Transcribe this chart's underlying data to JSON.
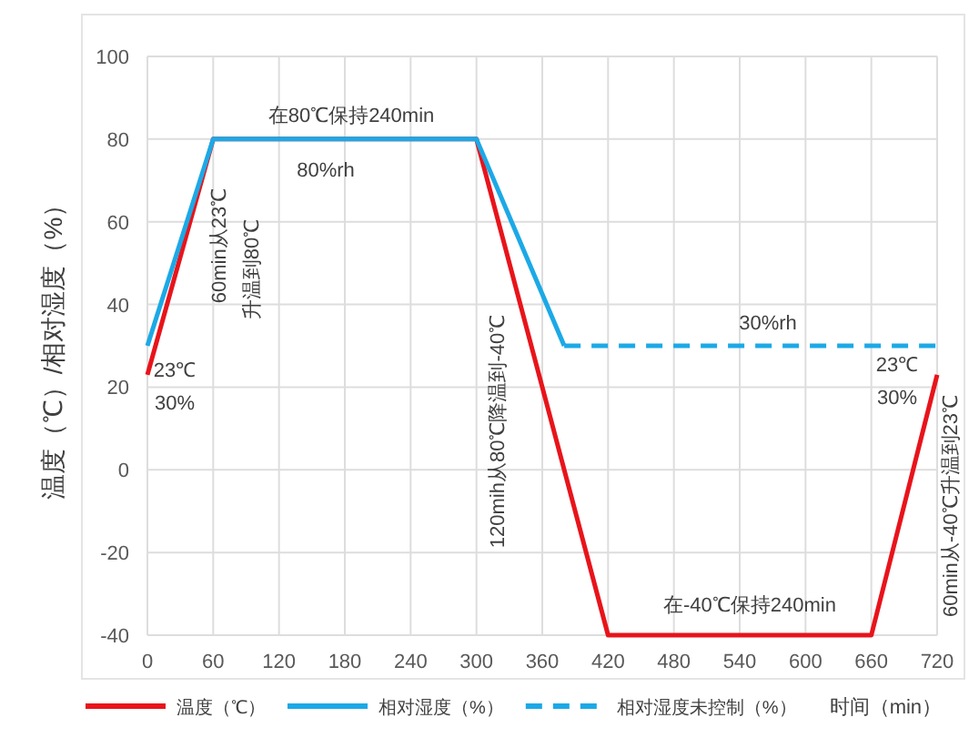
{
  "chart_data": {
    "type": "line",
    "xlabel": "时间（min）",
    "ylabel": "温度（℃）/相对湿度（%）",
    "xlim": [
      0,
      720
    ],
    "xticks": [
      0,
      60,
      120,
      180,
      240,
      300,
      360,
      420,
      480,
      540,
      600,
      660,
      720
    ],
    "ylim": [
      -40,
      100
    ],
    "yticks": [
      -40,
      -20,
      0,
      20,
      40,
      60,
      80,
      100
    ],
    "grid": true,
    "legend": "bottom",
    "series": [
      {
        "name": "温度（℃）",
        "color": "#e8141b",
        "line_style": "solid",
        "x": [
          0,
          60,
          300,
          420,
          660,
          720
        ],
        "values": [
          23,
          80,
          80,
          -40,
          -40,
          23
        ]
      },
      {
        "name": "相对湿度（%）",
        "color": "#1ca9e6",
        "line_style": "solid",
        "x": [
          0,
          60,
          300,
          380
        ],
        "values": [
          30,
          80,
          80,
          30
        ]
      },
      {
        "name": "相对湿度未控制（%）",
        "color": "#1ca9e6",
        "line_style": "dashed",
        "x": [
          380,
          720
        ],
        "values": [
          30,
          30
        ]
      }
    ],
    "annotations": [
      "在80℃保持240min",
      "80%rh",
      "60min从23℃",
      "升温到80℃",
      "23℃",
      "30%",
      "120mih从80℃降温到-40℃",
      "30%rh",
      "23℃",
      "30%",
      "在-40℃保持240min",
      "60min从-40℃升温到23℃"
    ]
  }
}
